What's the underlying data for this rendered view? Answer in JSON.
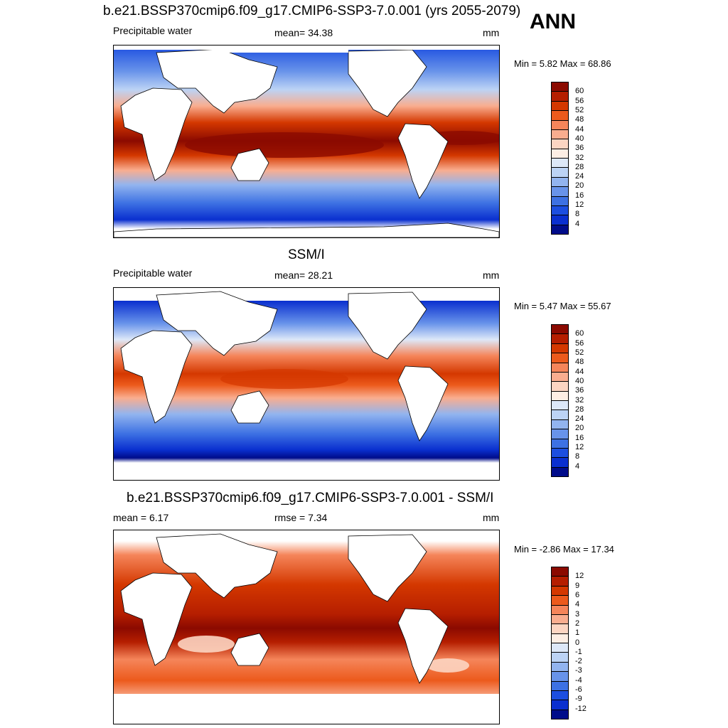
{
  "season": "ANN",
  "units": "mm",
  "panels": [
    {
      "title": "b.e21.BSSP370cmip6.f09_g17.CMIP6-SSP3-7.0.001 (yrs 2055-2079)",
      "left_label": "Precipitable water",
      "center_label": "mean=  34.38",
      "units": "mm",
      "minmax": "Min =   5.82 Max =  68.86",
      "colorbar": {
        "ticks": [
          "60",
          "56",
          "52",
          "48",
          "44",
          "40",
          "36",
          "32",
          "28",
          "24",
          "20",
          "16",
          "12",
          "8",
          "4"
        ],
        "colors": [
          "#8b0a00",
          "#b51e00",
          "#d43800",
          "#ec5a1c",
          "#f5855a",
          "#f9ad8f",
          "#fcd5c2",
          "#fdeee4",
          "#dde8f8",
          "#bcd3f5",
          "#92b4ef",
          "#6893ea",
          "#3d71e3",
          "#1c4ee0",
          "#0a2fcf",
          "#000c8a"
        ]
      }
    },
    {
      "title": "SSM/I",
      "left_label": "Precipitable water",
      "center_label": "mean=  28.21",
      "units": "mm",
      "minmax": "Min =   5.47 Max =  55.67",
      "colorbar": {
        "ticks": [
          "60",
          "56",
          "52",
          "48",
          "44",
          "40",
          "36",
          "32",
          "28",
          "24",
          "20",
          "16",
          "12",
          "8",
          "4"
        ],
        "colors": [
          "#8b0a00",
          "#b51e00",
          "#d43800",
          "#ec5a1c",
          "#f5855a",
          "#f9ad8f",
          "#fcd5c2",
          "#fdeee4",
          "#dde8f8",
          "#bcd3f5",
          "#92b4ef",
          "#6893ea",
          "#3d71e3",
          "#1c4ee0",
          "#0a2fcf",
          "#000c8a"
        ]
      }
    },
    {
      "title": "b.e21.BSSP370cmip6.f09_g17.CMIP6-SSP3-7.0.001 - SSM/I",
      "left_label": "mean =   6.17",
      "center_label": "rmse =   7.34",
      "units": "mm",
      "minmax": "Min =  -2.86 Max =  17.34",
      "colorbar": {
        "ticks": [
          "12",
          "9",
          "6",
          "4",
          "3",
          "2",
          "1",
          "0",
          "-1",
          "-2",
          "-3",
          "-4",
          "-6",
          "-9",
          "-12"
        ],
        "colors": [
          "#8b0a00",
          "#b51e00",
          "#d43800",
          "#ec5a1c",
          "#f5855a",
          "#f9ad8f",
          "#fcd5c2",
          "#fdeee4",
          "#dde8f8",
          "#bcd3f5",
          "#92b4ef",
          "#6893ea",
          "#3d71e3",
          "#1c4ee0",
          "#0a2fcf",
          "#000c8a"
        ]
      }
    }
  ]
}
